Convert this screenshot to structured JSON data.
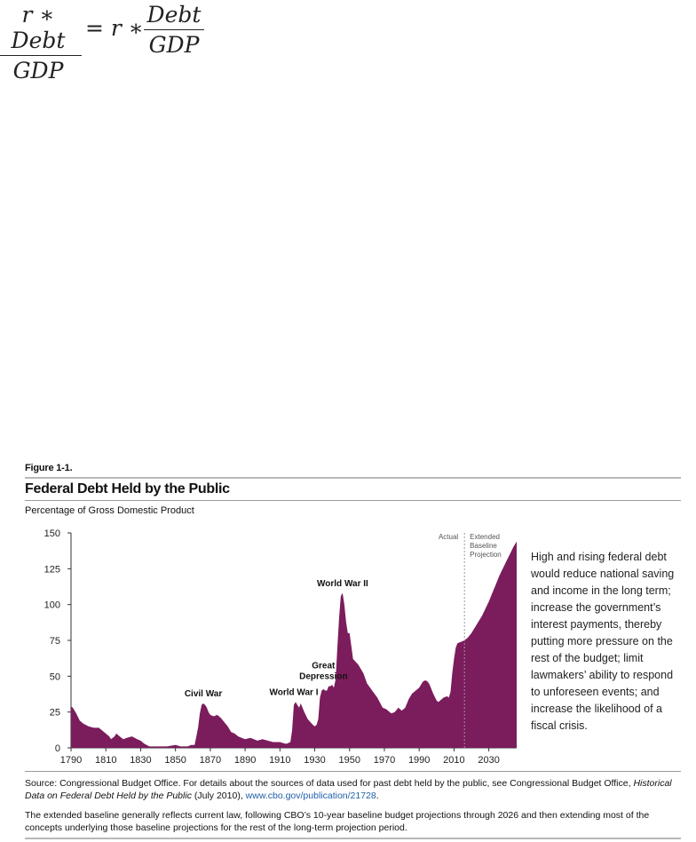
{
  "formula": {
    "left_numerator": "r ∗ Debt",
    "left_denominator": "GDP",
    "operator": "= r ∗",
    "right_numerator": "Debt",
    "right_denominator": "GDP"
  },
  "figure": {
    "label": "Figure 1-1.",
    "title": "Federal Debt Held by the Public",
    "unit": "Percentage of Gross Domestic Product",
    "side_note": "High and rising federal debt would reduce national saving and income in the long term; increase the government’s interest payments, thereby putting more pressure on the rest of the budget; limit lawmakers’ ability to respond to unforeseen events; and increase the likelihood of a fiscal crisis.",
    "source_prefix": "Source: Congressional Budget Office. For details about the sources of data used for past debt held by the public, see Congressional Budget Office,",
    "source_title": "Historical Data on Federal Debt Held by the Public",
    "source_date": "(July 2010),",
    "source_link": "www.cbo.gov/publication/21728",
    "source_end": ".",
    "note": "The extended baseline generally reflects current law, following CBO’s 10-year baseline budget projections through 2026 and then extending most of the concepts underlying those baseline projections for the rest of the long-term projection period."
  },
  "chart_data": {
    "type": "area",
    "title": "Federal Debt Held by the Public",
    "ylabel": "Percentage of Gross Domestic Product",
    "xlim": [
      1790,
      2046
    ],
    "ylim": [
      0,
      150
    ],
    "x_ticks": [
      1790,
      1810,
      1830,
      1850,
      1870,
      1890,
      1910,
      1930,
      1950,
      1970,
      1990,
      2010,
      2030
    ],
    "y_ticks": [
      0,
      25,
      50,
      75,
      100,
      125,
      150
    ],
    "divider_x": 2016,
    "region_labels": {
      "left": "Actual",
      "right": [
        "Extended",
        "Baseline",
        "Projection"
      ]
    },
    "annotations": [
      {
        "text": [
          "Civil War"
        ],
        "x": 1866
      },
      {
        "text": [
          "World War I"
        ],
        "x": 1918
      },
      {
        "text": [
          "Great",
          "Depression"
        ],
        "x": 1935
      },
      {
        "text": [
          "World War II"
        ],
        "x": 1946
      }
    ],
    "fill_color": "#7b1c5c",
    "series": [
      {
        "x": [
          1790,
          1791,
          1793,
          1795,
          1797,
          1800,
          1803,
          1806,
          1808,
          1810,
          1812,
          1813,
          1815,
          1816,
          1818,
          1820,
          1822,
          1825,
          1828,
          1830,
          1832,
          1835,
          1840,
          1843,
          1845,
          1850,
          1853,
          1857,
          1859,
          1861,
          1862,
          1863,
          1864,
          1865,
          1866,
          1867,
          1868,
          1869,
          1870,
          1872,
          1874,
          1876,
          1878,
          1880,
          1882,
          1884,
          1886,
          1888,
          1890,
          1893,
          1895,
          1897,
          1900,
          1903,
          1906,
          1910,
          1913,
          1914,
          1916,
          1917,
          1918,
          1919,
          1920,
          1921,
          1922,
          1924,
          1926,
          1929,
          1930,
          1931,
          1932,
          1933,
          1934,
          1935,
          1936,
          1937,
          1938,
          1939,
          1940,
          1941,
          1942,
          1943,
          1944,
          1945,
          1946,
          1947,
          1948,
          1949,
          1950,
          1952,
          1955,
          1958,
          1960,
          1963,
          1966,
          1969,
          1971,
          1974,
          1976,
          1978,
          1980,
          1982,
          1984,
          1986,
          1988,
          1990,
          1992,
          1993,
          1994,
          1995,
          1996,
          1998,
          2000,
          2001,
          2002,
          2004,
          2006,
          2007,
          2008,
          2009,
          2010,
          2011,
          2012,
          2014,
          2016,
          2018,
          2020,
          2022,
          2024,
          2026,
          2028,
          2030,
          2032,
          2034,
          2036,
          2038,
          2040,
          2042,
          2044,
          2046
        ],
        "values": [
          29,
          28,
          24,
          19,
          17,
          15,
          14,
          14,
          12,
          10,
          8,
          6,
          8,
          10,
          8,
          6,
          7,
          8,
          6,
          5,
          3,
          1,
          1,
          1,
          1,
          2,
          1,
          1,
          2,
          2,
          8,
          14,
          24,
          30,
          31,
          30,
          28,
          25,
          23,
          22,
          23,
          21,
          18,
          15,
          11,
          10,
          8,
          7,
          6,
          7,
          6,
          5,
          6,
          5,
          4,
          4,
          3,
          3,
          4,
          12,
          30,
          32,
          30,
          28,
          31,
          25,
          20,
          16,
          15,
          16,
          20,
          35,
          40,
          41,
          40,
          40,
          43,
          43,
          44,
          42,
          48,
          70,
          91,
          106,
          108,
          100,
          88,
          80,
          80,
          62,
          58,
          52,
          45,
          40,
          35,
          28,
          27,
          24,
          25,
          28,
          26,
          28,
          34,
          38,
          40,
          42,
          46,
          47,
          47,
          46,
          44,
          38,
          33,
          32,
          33,
          35,
          36,
          35,
          39,
          52,
          62,
          70,
          73,
          74,
          75,
          77,
          80,
          84,
          88,
          92,
          97,
          102,
          108,
          114,
          120,
          125,
          130,
          135,
          140,
          144
        ]
      }
    ]
  }
}
